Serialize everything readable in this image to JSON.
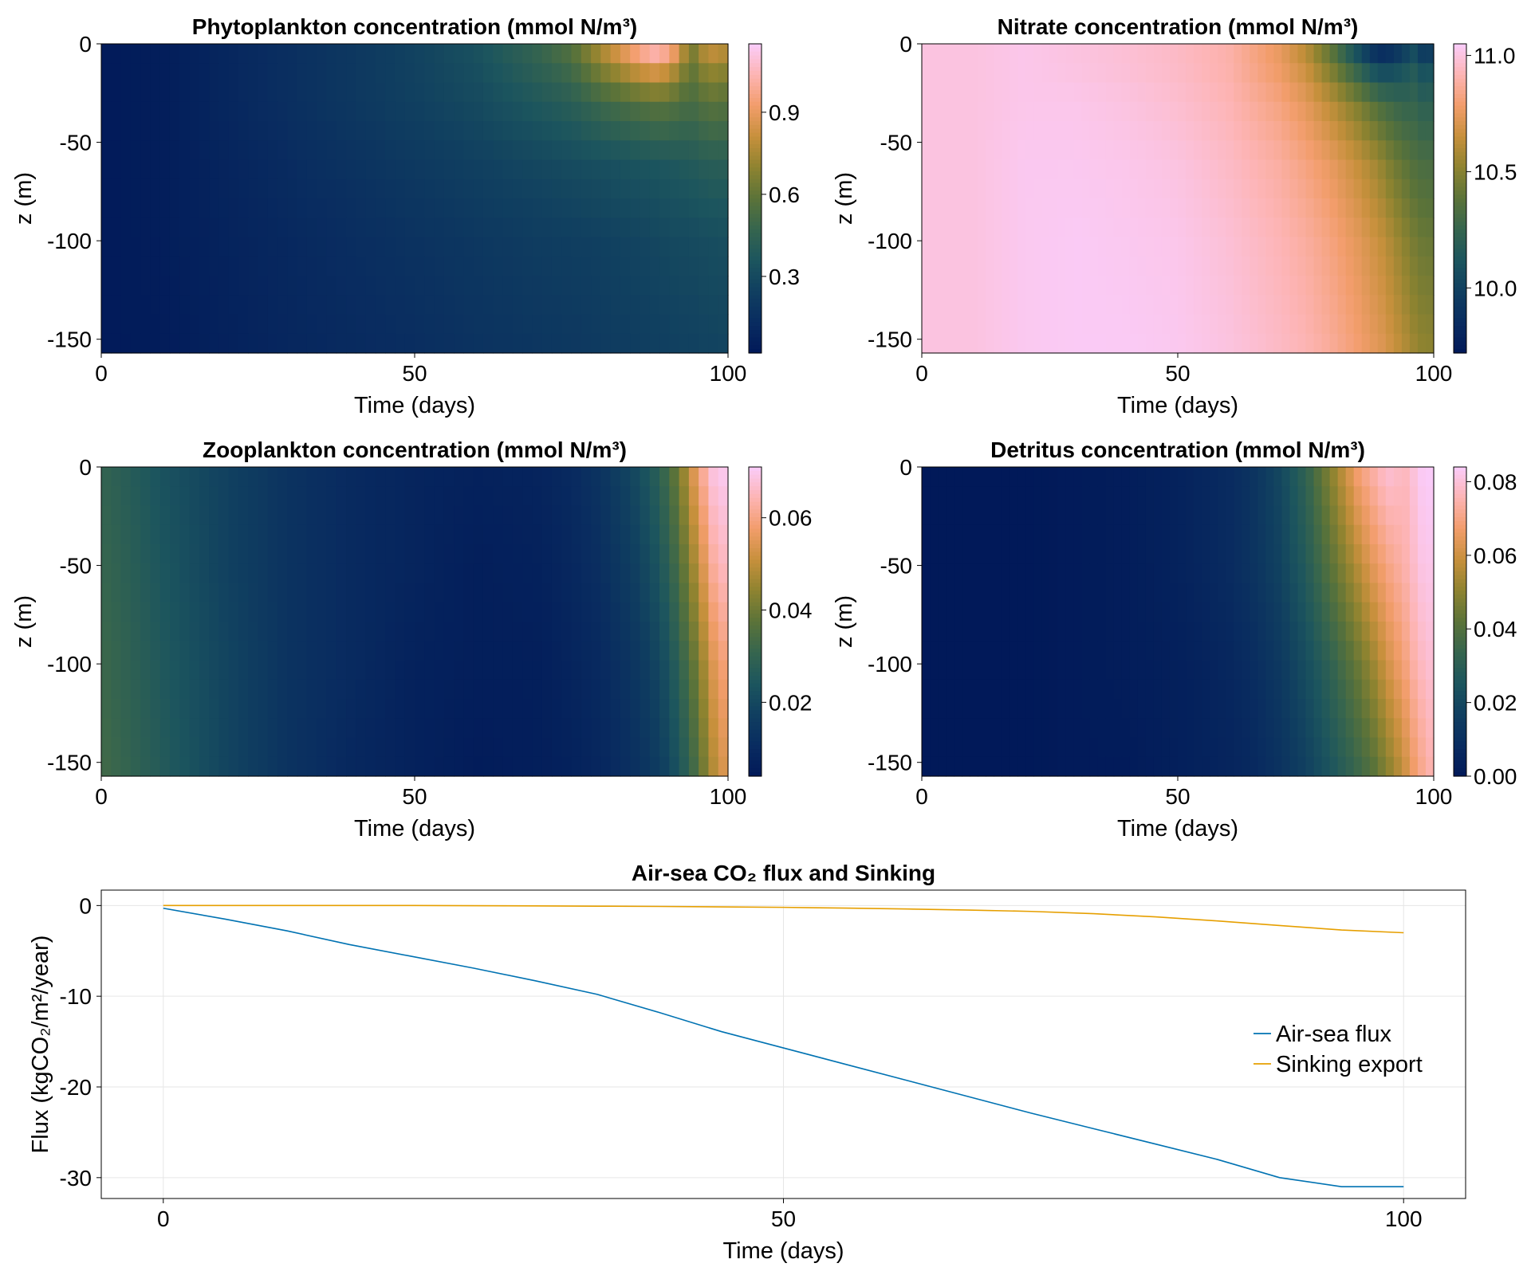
{
  "chart_data": [
    {
      "type": "heatmap",
      "id": "phyto",
      "title": "Phytoplankton concentration (mmol N/m³)",
      "xlabel": "Time (days)",
      "ylabel": "z (m)",
      "xlim": [
        0,
        100
      ],
      "ylim": [
        -157,
        0
      ],
      "xticks": [
        0,
        50,
        100
      ],
      "xtick_labels": [
        "0",
        "50",
        "100"
      ],
      "yticks": [
        0,
        -50,
        -100,
        -150
      ],
      "ytick_labels": [
        "0",
        "-50",
        "-100",
        "-150"
      ],
      "colorbar": {
        "min": 0.02,
        "max": 1.15,
        "ticks": [
          0.3,
          0.6,
          0.9
        ],
        "tick_labels": [
          "0.3",
          "0.6",
          "0.9"
        ]
      },
      "colormap": "batlow",
      "times": [
        0,
        10,
        20,
        30,
        40,
        50,
        60,
        70,
        75,
        80,
        85,
        88,
        90,
        92,
        94,
        96,
        98,
        100
      ],
      "depths": [
        0,
        -10,
        -30,
        -60,
        -100,
        -157
      ],
      "values": [
        [
          0.03,
          0.05,
          0.1,
          0.15,
          0.2,
          0.26,
          0.34,
          0.48,
          0.58,
          0.8,
          1.0,
          1.12,
          1.08,
          0.95,
          0.65,
          0.8,
          0.85,
          0.8
        ],
        [
          0.03,
          0.05,
          0.1,
          0.15,
          0.2,
          0.26,
          0.33,
          0.45,
          0.52,
          0.7,
          0.85,
          0.92,
          0.88,
          0.78,
          0.6,
          0.7,
          0.74,
          0.7
        ],
        [
          0.03,
          0.05,
          0.1,
          0.15,
          0.2,
          0.25,
          0.3,
          0.38,
          0.42,
          0.5,
          0.55,
          0.58,
          0.58,
          0.55,
          0.52,
          0.56,
          0.58,
          0.56
        ],
        [
          0.03,
          0.05,
          0.09,
          0.13,
          0.17,
          0.21,
          0.25,
          0.29,
          0.31,
          0.33,
          0.35,
          0.36,
          0.37,
          0.38,
          0.39,
          0.41,
          0.42,
          0.42
        ],
        [
          0.03,
          0.05,
          0.08,
          0.11,
          0.14,
          0.17,
          0.2,
          0.23,
          0.24,
          0.25,
          0.27,
          0.28,
          0.29,
          0.3,
          0.3,
          0.31,
          0.32,
          0.32
        ],
        [
          0.03,
          0.04,
          0.07,
          0.1,
          0.12,
          0.14,
          0.17,
          0.19,
          0.2,
          0.22,
          0.23,
          0.24,
          0.24,
          0.25,
          0.25,
          0.26,
          0.26,
          0.27
        ]
      ]
    },
    {
      "type": "heatmap",
      "id": "nitrate",
      "title": "Nitrate concentration (mmol N/m³)",
      "xlabel": "Time (days)",
      "ylabel": "z (m)",
      "xlim": [
        0,
        100
      ],
      "ylim": [
        -157,
        0
      ],
      "xticks": [
        0,
        50,
        100
      ],
      "xtick_labels": [
        "0",
        "50",
        "100"
      ],
      "yticks": [
        0,
        -50,
        -100,
        -150
      ],
      "ytick_labels": [
        "0",
        "-50",
        "-100",
        "-150"
      ],
      "colorbar": {
        "min": 9.72,
        "max": 11.05,
        "ticks": [
          10.0,
          10.5,
          11.0
        ],
        "tick_labels": [
          "10.0",
          "10.5",
          "11.0"
        ]
      },
      "colormap": "batlow",
      "times": [
        0,
        10,
        20,
        30,
        40,
        50,
        60,
        70,
        75,
        80,
        85,
        88,
        90,
        92,
        94,
        96,
        98,
        100
      ],
      "depths": [
        0,
        -10,
        -30,
        -60,
        -100,
        -157
      ],
      "values": [
        [
          11.0,
          11.0,
          11.02,
          11.0,
          10.98,
          10.95,
          10.9,
          10.75,
          10.6,
          10.35,
          10.0,
          9.8,
          9.75,
          9.8,
          9.9,
          10.0,
          9.85,
          9.9
        ],
        [
          11.0,
          11.0,
          11.02,
          11.0,
          10.98,
          10.95,
          10.9,
          10.76,
          10.65,
          10.45,
          10.2,
          10.05,
          10.0,
          10.02,
          10.08,
          10.15,
          10.05,
          10.1
        ],
        [
          11.0,
          11.0,
          11.02,
          11.02,
          11.0,
          10.97,
          10.92,
          10.82,
          10.74,
          10.62,
          10.48,
          10.38,
          10.32,
          10.28,
          10.24,
          10.25,
          10.2,
          10.22
        ],
        [
          11.0,
          11.0,
          11.03,
          11.03,
          11.02,
          11.0,
          10.95,
          10.88,
          10.82,
          10.75,
          10.65,
          10.58,
          10.52,
          10.45,
          10.4,
          10.35,
          10.32,
          10.32
        ],
        [
          11.0,
          11.0,
          11.03,
          11.04,
          11.03,
          11.02,
          10.98,
          10.92,
          10.88,
          10.82,
          10.74,
          10.68,
          10.64,
          10.58,
          10.52,
          10.46,
          10.42,
          10.42
        ],
        [
          11.0,
          11.0,
          11.03,
          11.04,
          11.04,
          11.03,
          11.0,
          10.95,
          10.92,
          10.87,
          10.8,
          10.75,
          10.72,
          10.67,
          10.62,
          10.56,
          10.52,
          10.52
        ]
      ]
    },
    {
      "type": "heatmap",
      "id": "zoo",
      "title": "Zooplankton concentration (mmol N/m³)",
      "xlabel": "Time (days)",
      "ylabel": "z (m)",
      "xlim": [
        0,
        100
      ],
      "ylim": [
        -157,
        0
      ],
      "xticks": [
        0,
        50,
        100
      ],
      "xtick_labels": [
        "0",
        "50",
        "100"
      ],
      "yticks": [
        0,
        -50,
        -100,
        -150
      ],
      "ytick_labels": [
        "0",
        "-50",
        "-100",
        "-150"
      ],
      "colorbar": {
        "min": 0.004,
        "max": 0.071,
        "ticks": [
          0.02,
          0.04,
          0.06
        ],
        "tick_labels": [
          "0.02",
          "0.04",
          "0.06"
        ]
      },
      "colormap": "batlow",
      "times": [
        0,
        10,
        20,
        30,
        40,
        50,
        60,
        70,
        75,
        80,
        85,
        88,
        90,
        92,
        94,
        96,
        98,
        100
      ],
      "depths": [
        0,
        -50,
        -100,
        -157
      ],
      "values": [
        [
          0.03,
          0.023,
          0.018,
          0.013,
          0.01,
          0.008,
          0.007,
          0.008,
          0.01,
          0.014,
          0.02,
          0.026,
          0.032,
          0.04,
          0.052,
          0.062,
          0.07,
          0.07
        ],
        [
          0.031,
          0.024,
          0.018,
          0.013,
          0.01,
          0.008,
          0.006,
          0.007,
          0.009,
          0.012,
          0.017,
          0.022,
          0.027,
          0.034,
          0.044,
          0.054,
          0.064,
          0.066
        ],
        [
          0.032,
          0.025,
          0.019,
          0.013,
          0.01,
          0.007,
          0.006,
          0.006,
          0.008,
          0.01,
          0.014,
          0.018,
          0.022,
          0.028,
          0.036,
          0.046,
          0.056,
          0.06
        ],
        [
          0.033,
          0.026,
          0.019,
          0.013,
          0.009,
          0.007,
          0.005,
          0.006,
          0.007,
          0.009,
          0.012,
          0.015,
          0.018,
          0.023,
          0.03,
          0.04,
          0.05,
          0.055
        ]
      ]
    },
    {
      "type": "heatmap",
      "id": "detritus",
      "title": "Detritus concentration (mmol N/m³)",
      "xlabel": "Time (days)",
      "ylabel": "z (m)",
      "xlim": [
        0,
        100
      ],
      "ylim": [
        -157,
        0
      ],
      "xticks": [
        0,
        50,
        100
      ],
      "xtick_labels": [
        "0",
        "50",
        "100"
      ],
      "yticks": [
        0,
        -50,
        -100,
        -150
      ],
      "ytick_labels": [
        "0",
        "-50",
        "-100",
        "-150"
      ],
      "colorbar": {
        "min": 0.0,
        "max": 0.084,
        "ticks": [
          0.0,
          0.02,
          0.04,
          0.06,
          0.08
        ],
        "tick_labels": [
          "0.00",
          "0.02",
          "0.04",
          "0.06",
          "0.08"
        ]
      },
      "colormap": "batlow",
      "times": [
        0,
        10,
        20,
        30,
        40,
        50,
        60,
        65,
        70,
        75,
        80,
        85,
        88,
        90,
        92,
        94,
        96,
        98,
        100
      ],
      "depths": [
        0,
        -50,
        -100,
        -157
      ],
      "values": [
        [
          0.0,
          0.0,
          0.0,
          0.001,
          0.002,
          0.004,
          0.008,
          0.012,
          0.02,
          0.032,
          0.05,
          0.068,
          0.074,
          0.078,
          0.08,
          0.076,
          0.08,
          0.084,
          0.084
        ],
        [
          0.0,
          0.0,
          0.0,
          0.001,
          0.002,
          0.004,
          0.008,
          0.012,
          0.018,
          0.028,
          0.042,
          0.056,
          0.064,
          0.068,
          0.072,
          0.074,
          0.078,
          0.082,
          0.082
        ],
        [
          0.0,
          0.0,
          0.0,
          0.001,
          0.002,
          0.003,
          0.006,
          0.009,
          0.014,
          0.022,
          0.032,
          0.044,
          0.052,
          0.058,
          0.064,
          0.068,
          0.074,
          0.078,
          0.08
        ],
        [
          0.0,
          0.0,
          0.0,
          0.001,
          0.001,
          0.003,
          0.005,
          0.007,
          0.011,
          0.017,
          0.025,
          0.034,
          0.04,
          0.046,
          0.052,
          0.058,
          0.066,
          0.072,
          0.076
        ]
      ]
    },
    {
      "type": "line",
      "id": "flux",
      "title": "Air-sea CO₂ flux and Sinking",
      "xlabel": "Time (days)",
      "ylabel": "Flux (kgCO₂/m²/year)",
      "xlim": [
        -5,
        105
      ],
      "ylim": [
        -32.3,
        1.7
      ],
      "xticks": [
        0,
        50,
        100
      ],
      "xtick_labels": [
        "0",
        "50",
        "100"
      ],
      "yticks": [
        0,
        -10,
        -20,
        -30
      ],
      "ytick_labels": [
        "0",
        "-10",
        "-20",
        "-30"
      ],
      "grid": true,
      "legend_position": "right",
      "x": [
        0,
        5,
        10,
        15,
        20,
        25,
        30,
        35,
        40,
        45,
        50,
        55,
        60,
        65,
        70,
        75,
        80,
        85,
        90,
        95,
        100
      ],
      "series": [
        {
          "name": "Air-sea flux",
          "color": "#0072b2",
          "values": [
            -0.3,
            -1.5,
            -2.8,
            -4.3,
            -5.6,
            -6.9,
            -8.3,
            -9.8,
            -11.8,
            -13.9,
            -15.7,
            -17.5,
            -19.3,
            -21.1,
            -22.9,
            -24.6,
            -26.3,
            -28.0,
            -30.0,
            -31.0,
            -31.0
          ]
        },
        {
          "name": "Sinking export",
          "color": "#e69f00",
          "values": [
            0.0,
            0.0,
            0.0,
            0.0,
            0.0,
            -0.02,
            -0.04,
            -0.07,
            -0.1,
            -0.15,
            -0.2,
            -0.28,
            -0.38,
            -0.5,
            -0.65,
            -0.9,
            -1.25,
            -1.7,
            -2.2,
            -2.7,
            -3.0
          ]
        }
      ]
    }
  ]
}
